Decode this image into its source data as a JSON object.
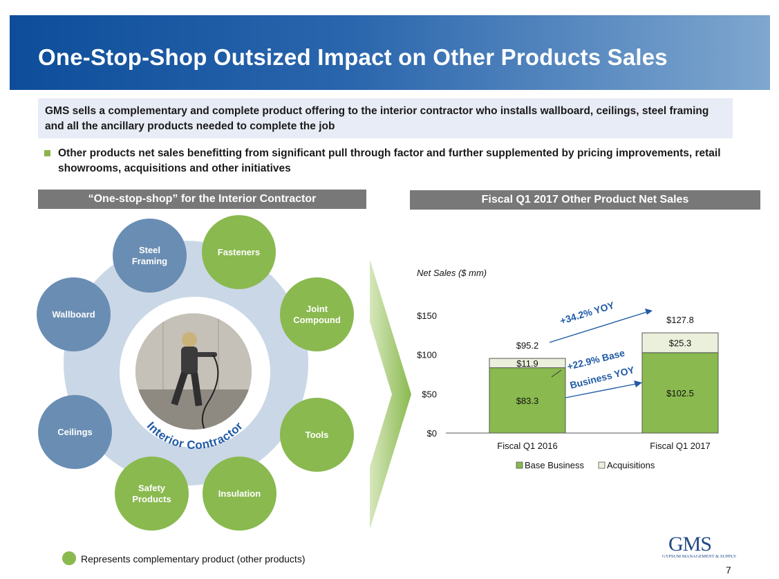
{
  "title": "One-Stop-Shop Outsized Impact on Other Products Sales",
  "summary": "GMS sells a complementary and complete product offering to the interior contractor who installs wallboard, ceilings, steel framing and all the ancillary products needed to complete the job",
  "bullet": "Other products net sales benefitting from significant pull through factor and further supplemented by pricing improvements, retail showrooms, acquisitions and other initiatives",
  "left_header": "“One-stop-shop” for the Interior Contractor",
  "right_header": "Fiscal Q1 2017 Other Product Net Sales",
  "diagram": {
    "center_label": "Interior Contractor",
    "nodes": [
      {
        "label": "Steel Framing",
        "kind": "blue"
      },
      {
        "label": "Fasteners",
        "kind": "green"
      },
      {
        "label": "Wallboard",
        "kind": "blue"
      },
      {
        "label": "Joint Compound",
        "kind": "green"
      },
      {
        "label": "Ceilings",
        "kind": "blue"
      },
      {
        "label": "Tools",
        "kind": "green"
      },
      {
        "label": "Safety Products",
        "kind": "green"
      },
      {
        "label": "Insulation",
        "kind": "green"
      }
    ],
    "colors": {
      "blue": "#6a8db3",
      "green": "#8ab94f"
    }
  },
  "legend_note": "Represents complementary product (other products)",
  "chart_data": {
    "type": "bar",
    "stacked": true,
    "ylabel": "Net Sales ($ mm)",
    "categories": [
      "Fiscal Q1 2016",
      "Fiscal Q1 2017"
    ],
    "series": [
      {
        "name": "Base Business",
        "values": [
          83.3,
          102.5
        ],
        "labels": [
          "$83.3",
          "$102.5"
        ],
        "color": "#8ab94f"
      },
      {
        "name": "Acquisitions",
        "values": [
          11.9,
          25.3
        ],
        "labels": [
          "$11.9",
          "$25.3"
        ],
        "color": "#eaf0dc"
      }
    ],
    "totals": [
      "$95.2",
      "$127.8"
    ],
    "yticks": [
      0,
      50,
      100,
      150
    ],
    "ytick_labels": [
      "$0",
      "$50",
      "$100",
      "$150"
    ],
    "ylim": [
      0,
      150
    ],
    "annotations": [
      "+34.2% YOY",
      "+22.9% Base",
      "Business YOY"
    ],
    "legend_position": "bottom"
  },
  "logo": {
    "main": "GMS",
    "sub": "GYPSUM MANAGEMENT & SUPPLY"
  },
  "page_number": "7"
}
